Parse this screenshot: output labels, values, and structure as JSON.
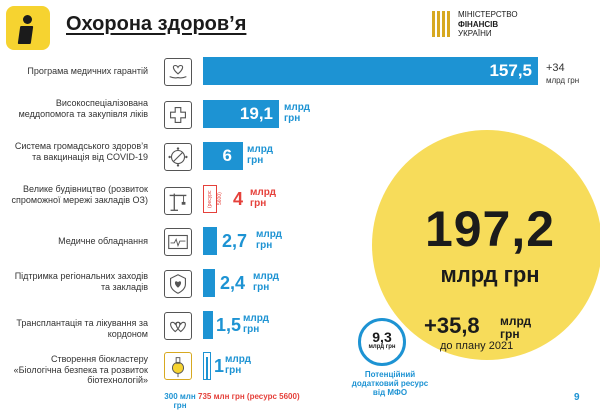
{
  "header": {
    "title": "Охорона здоров’я",
    "ministry": [
      "МІНІСТЕРСТВО",
      "ФІНАНСІВ",
      "УКРАЇНИ"
    ]
  },
  "rows": [
    {
      "label": "Програма медичних гарантій",
      "value": "157,5",
      "unit": "млрд грн",
      "icon": "heart-hands-icon",
      "extra": "+34",
      "extra_unit": "млрд грн"
    },
    {
      "label": "Високоспеціалізована меддопомога та закупівля ліків",
      "value": "19,1",
      "unit": "млрд грн",
      "icon": "medical-cross-icon"
    },
    {
      "label": "Система громадського здоров’я та вакцинація від COVID-19",
      "value": "6",
      "unit": "млрд грн",
      "icon": "virus-icon"
    },
    {
      "label": "Велике будівництво (розвиток спроможної мережі закладів ОЗ)",
      "value": "4",
      "unit": "млрд грн",
      "icon": "crane-icon",
      "note": "(ресурс 5600)"
    },
    {
      "label": "Медичне обладнання",
      "value": "2,7",
      "unit": "млрд грн",
      "icon": "monitor-icon"
    },
    {
      "label": "Підтримка регіональних заходів та закладів",
      "value": "2,4",
      "unit": "млрд грн",
      "icon": "shield-heart-icon"
    },
    {
      "label": "Трансплантація та лікування за кордоном",
      "value": "1,5",
      "unit": "млрд грн",
      "icon": "hearts-icon"
    },
    {
      "label": "Створення біокластеру «Біологічна безпека та розвиток біотехнологій»",
      "value": "1",
      "unit": "млрд грн",
      "icon": "flask-icon"
    }
  ],
  "bottom_notes": {
    "left": "300 млн грн",
    "right": "735 млн грн (ресурс 5600)"
  },
  "total": {
    "value": "197,2",
    "unit": "млрд грн",
    "increase": "+35,8",
    "increase_unit": "млрд грн",
    "plan_note": "до плану 2021"
  },
  "potential": {
    "value": "9,3",
    "unit": "млрд грн",
    "caption": "Потенційний додатковий ресурс від МФО"
  },
  "page_number": "9",
  "colors": {
    "accent_blue": "#1d93d3",
    "yellow": "#f7dc5a",
    "red": "#e5413b",
    "logo_yellow": "#f6d330"
  },
  "chart_data": {
    "type": "bar",
    "categories": [
      "Програма медичних гарантій",
      "Високоспеціалізована меддопомога та закупівля ліків",
      "Система громадського здоров’я та вакцинація від COVID-19",
      "Велике будівництво (розвиток спроможної мережі закладів ОЗ)",
      "Медичне обладнання",
      "Підтримка регіональних заходів та закладів",
      "Трансплантація та лікування за кордоном",
      "Створення біокластеру «Біологічна безпека та розвиток біотехнологій»"
    ],
    "values": [
      157.5,
      19.1,
      6,
      4,
      2.7,
      2.4,
      1.5,
      1
    ]
  }
}
